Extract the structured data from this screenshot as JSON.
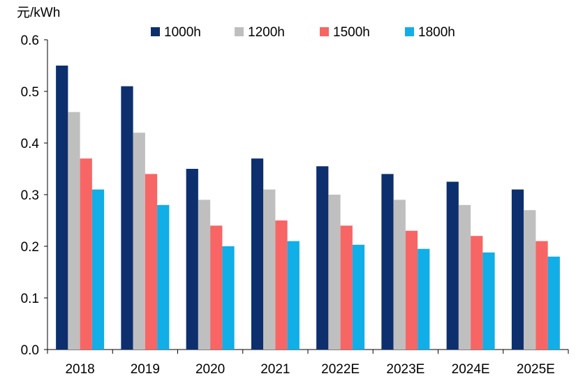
{
  "chart_data": {
    "type": "bar",
    "unit_label": "元/kWh",
    "categories": [
      "2018",
      "2019",
      "2020",
      "2021",
      "2022E",
      "2023E",
      "2024E",
      "2025E"
    ],
    "series": [
      {
        "name": "1000h",
        "color": "#0d2f6e",
        "values": [
          0.55,
          0.51,
          0.35,
          0.37,
          0.355,
          0.34,
          0.325,
          0.31
        ]
      },
      {
        "name": "1200h",
        "color": "#bfbfbf",
        "values": [
          0.46,
          0.42,
          0.29,
          0.31,
          0.3,
          0.29,
          0.28,
          0.27
        ]
      },
      {
        "name": "1500h",
        "color": "#f86565",
        "values": [
          0.37,
          0.34,
          0.24,
          0.25,
          0.24,
          0.23,
          0.22,
          0.21
        ]
      },
      {
        "name": "1800h",
        "color": "#11aee8",
        "values": [
          0.31,
          0.28,
          0.2,
          0.21,
          0.203,
          0.195,
          0.188,
          0.18
        ]
      }
    ],
    "yticks": [
      "0.0",
      "0.1",
      "0.2",
      "0.3",
      "0.4",
      "0.5",
      "0.6"
    ],
    "ylim": [
      0,
      0.6
    ],
    "legend_position": "top",
    "grid": false
  }
}
